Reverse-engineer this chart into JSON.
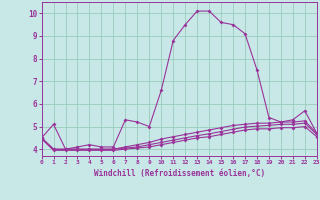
{
  "background_color": "#c8e8e8",
  "grid_color": "#99ccbb",
  "line_color": "#993399",
  "xlim": [
    0,
    23
  ],
  "ylim": [
    3.7,
    10.5
  ],
  "xticks": [
    0,
    1,
    2,
    3,
    4,
    5,
    6,
    7,
    8,
    9,
    10,
    11,
    12,
    13,
    14,
    15,
    16,
    17,
    18,
    19,
    20,
    21,
    22,
    23
  ],
  "yticks": [
    4,
    5,
    6,
    7,
    8,
    9,
    10
  ],
  "xlabel": "Windchill (Refroidissement éolien,°C)",
  "x": [
    0,
    1,
    2,
    3,
    4,
    5,
    6,
    7,
    8,
    9,
    10,
    11,
    12,
    13,
    14,
    15,
    16,
    17,
    18,
    19,
    20,
    21,
    22,
    23
  ],
  "line1": [
    4.5,
    5.1,
    4.0,
    4.1,
    4.2,
    4.1,
    4.1,
    5.3,
    5.2,
    5.0,
    6.6,
    8.8,
    9.5,
    10.1,
    10.1,
    9.6,
    9.5,
    9.1,
    7.5,
    5.4,
    5.2,
    5.3,
    5.7,
    4.7
  ],
  "line2": [
    4.5,
    4.0,
    4.0,
    4.0,
    4.0,
    4.0,
    4.0,
    4.1,
    4.2,
    4.3,
    4.45,
    4.55,
    4.65,
    4.75,
    4.85,
    4.95,
    5.05,
    5.1,
    5.15,
    5.15,
    5.2,
    5.2,
    5.25,
    4.7
  ],
  "line3": [
    4.5,
    4.0,
    4.0,
    4.0,
    4.0,
    4.0,
    4.0,
    4.05,
    4.1,
    4.2,
    4.3,
    4.4,
    4.5,
    4.6,
    4.68,
    4.78,
    4.88,
    4.98,
    5.02,
    5.05,
    5.1,
    5.1,
    5.15,
    4.65
  ],
  "line4": [
    4.45,
    3.95,
    3.95,
    3.95,
    3.95,
    3.95,
    3.95,
    4.0,
    4.05,
    4.1,
    4.2,
    4.3,
    4.4,
    4.5,
    4.55,
    4.65,
    4.75,
    4.85,
    4.9,
    4.9,
    4.95,
    4.95,
    5.0,
    4.55
  ]
}
